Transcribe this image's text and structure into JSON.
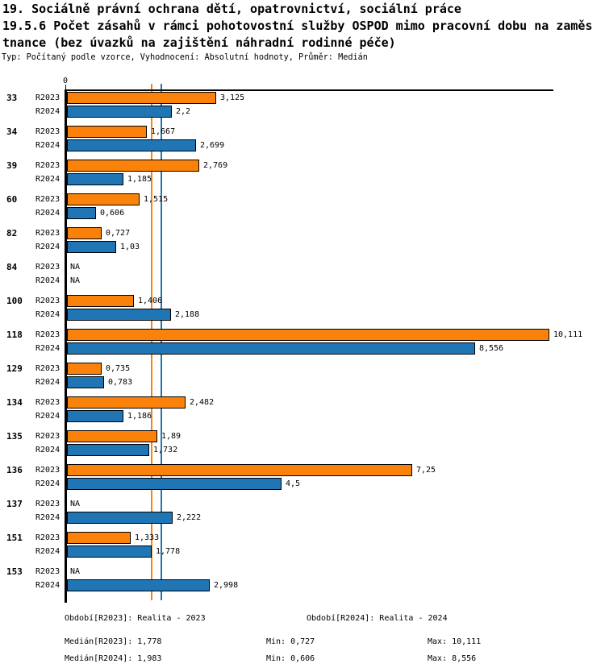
{
  "header": {
    "title_line1": "19. Sociálně právní ochrana dětí, opatrovnictví, sociální práce",
    "title_line2": "19.5.6 Počet zásahů v rámci pohotovostní služby OSPOD mimo pracovní dobu na zaměs",
    "title_line3": "tnance (bez úvazků na zajištění náhradní rodinné péče)",
    "subtitle": "Typ: Počítaný podle vzorce, Vyhodnocení: Absolutní hodnoty, Průměr: Medián"
  },
  "chart_data": {
    "type": "bar",
    "orientation": "horizontal",
    "x_axis": {
      "zero_label": "0",
      "xlim": [
        0,
        10.5
      ],
      "grid": false
    },
    "series": [
      {
        "name": "R2023",
        "color": "#FA820A"
      },
      {
        "name": "R2024",
        "color": "#2076B4"
      }
    ],
    "na_label": "NA",
    "groups": [
      {
        "category": "33",
        "values": [
          {
            "series": "R2023",
            "value": 3.125,
            "label": "3,125"
          },
          {
            "series": "R2024",
            "value": 2.2,
            "label": "2,2"
          }
        ]
      },
      {
        "category": "34",
        "values": [
          {
            "series": "R2023",
            "value": 1.667,
            "label": "1,667"
          },
          {
            "series": "R2024",
            "value": 2.699,
            "label": "2,699"
          }
        ]
      },
      {
        "category": "39",
        "values": [
          {
            "series": "R2023",
            "value": 2.769,
            "label": "2,769"
          },
          {
            "series": "R2024",
            "value": 1.185,
            "label": "1,185"
          }
        ]
      },
      {
        "category": "60",
        "values": [
          {
            "series": "R2023",
            "value": 1.515,
            "label": "1,515"
          },
          {
            "series": "R2024",
            "value": 0.606,
            "label": "0,606"
          }
        ]
      },
      {
        "category": "82",
        "values": [
          {
            "series": "R2023",
            "value": 0.727,
            "label": "0,727"
          },
          {
            "series": "R2024",
            "value": 1.03,
            "label": "1,03"
          }
        ]
      },
      {
        "category": "84",
        "values": [
          {
            "series": "R2023",
            "value": null,
            "label": "NA"
          },
          {
            "series": "R2024",
            "value": null,
            "label": "NA"
          }
        ]
      },
      {
        "category": "100",
        "values": [
          {
            "series": "R2023",
            "value": 1.406,
            "label": "1,406"
          },
          {
            "series": "R2024",
            "value": 2.188,
            "label": "2,188"
          }
        ]
      },
      {
        "category": "118",
        "values": [
          {
            "series": "R2023",
            "value": 10.111,
            "label": "10,111"
          },
          {
            "series": "R2024",
            "value": 8.556,
            "label": "8,556"
          }
        ]
      },
      {
        "category": "129",
        "values": [
          {
            "series": "R2023",
            "value": 0.735,
            "label": "0,735"
          },
          {
            "series": "R2024",
            "value": 0.783,
            "label": "0,783"
          }
        ]
      },
      {
        "category": "134",
        "values": [
          {
            "series": "R2023",
            "value": 2.482,
            "label": "2,482"
          },
          {
            "series": "R2024",
            "value": 1.186,
            "label": "1,186"
          }
        ]
      },
      {
        "category": "135",
        "values": [
          {
            "series": "R2023",
            "value": 1.89,
            "label": "1,89"
          },
          {
            "series": "R2024",
            "value": 1.732,
            "label": "1,732"
          }
        ]
      },
      {
        "category": "136",
        "values": [
          {
            "series": "R2023",
            "value": 7.25,
            "label": "7,25"
          },
          {
            "series": "R2024",
            "value": 4.5,
            "label": "4,5"
          }
        ]
      },
      {
        "category": "137",
        "values": [
          {
            "series": "R2023",
            "value": null,
            "label": "NA"
          },
          {
            "series": "R2024",
            "value": 2.222,
            "label": "2,222"
          }
        ]
      },
      {
        "category": "151",
        "values": [
          {
            "series": "R2023",
            "value": 1.333,
            "label": "1,333"
          },
          {
            "series": "R2024",
            "value": 1.778,
            "label": "1,778"
          }
        ]
      },
      {
        "category": "153",
        "values": [
          {
            "series": "R2023",
            "value": null,
            "label": "NA"
          },
          {
            "series": "R2024",
            "value": 2.998,
            "label": "2,998"
          }
        ]
      }
    ],
    "median_lines": [
      {
        "name": "median-r2023",
        "value": 1.778,
        "color": "#FA820A"
      },
      {
        "name": "median-r2024",
        "value": 1.983,
        "color": "#2076B4"
      }
    ],
    "stats": {
      "median_r2023": 1.778,
      "median_r2024": 1.983,
      "min_r2023": 0.727,
      "min_r2024": 0.606,
      "max_r2023": 10.111,
      "max_r2024": 8.556
    }
  },
  "footer": {
    "period_r2023": "Období[R2023]: Realita - 2023",
    "period_r2024": "Období[R2024]: Realita - 2024",
    "median_r2023": "Medián[R2023]: 1,778",
    "median_r2024": "Medián[R2024]: 1,983",
    "min_r2023": "Min: 0,727",
    "min_r2024": "Min: 0,606",
    "max_r2023": "Max: 10,111",
    "max_r2024": "Max: 8,556"
  }
}
